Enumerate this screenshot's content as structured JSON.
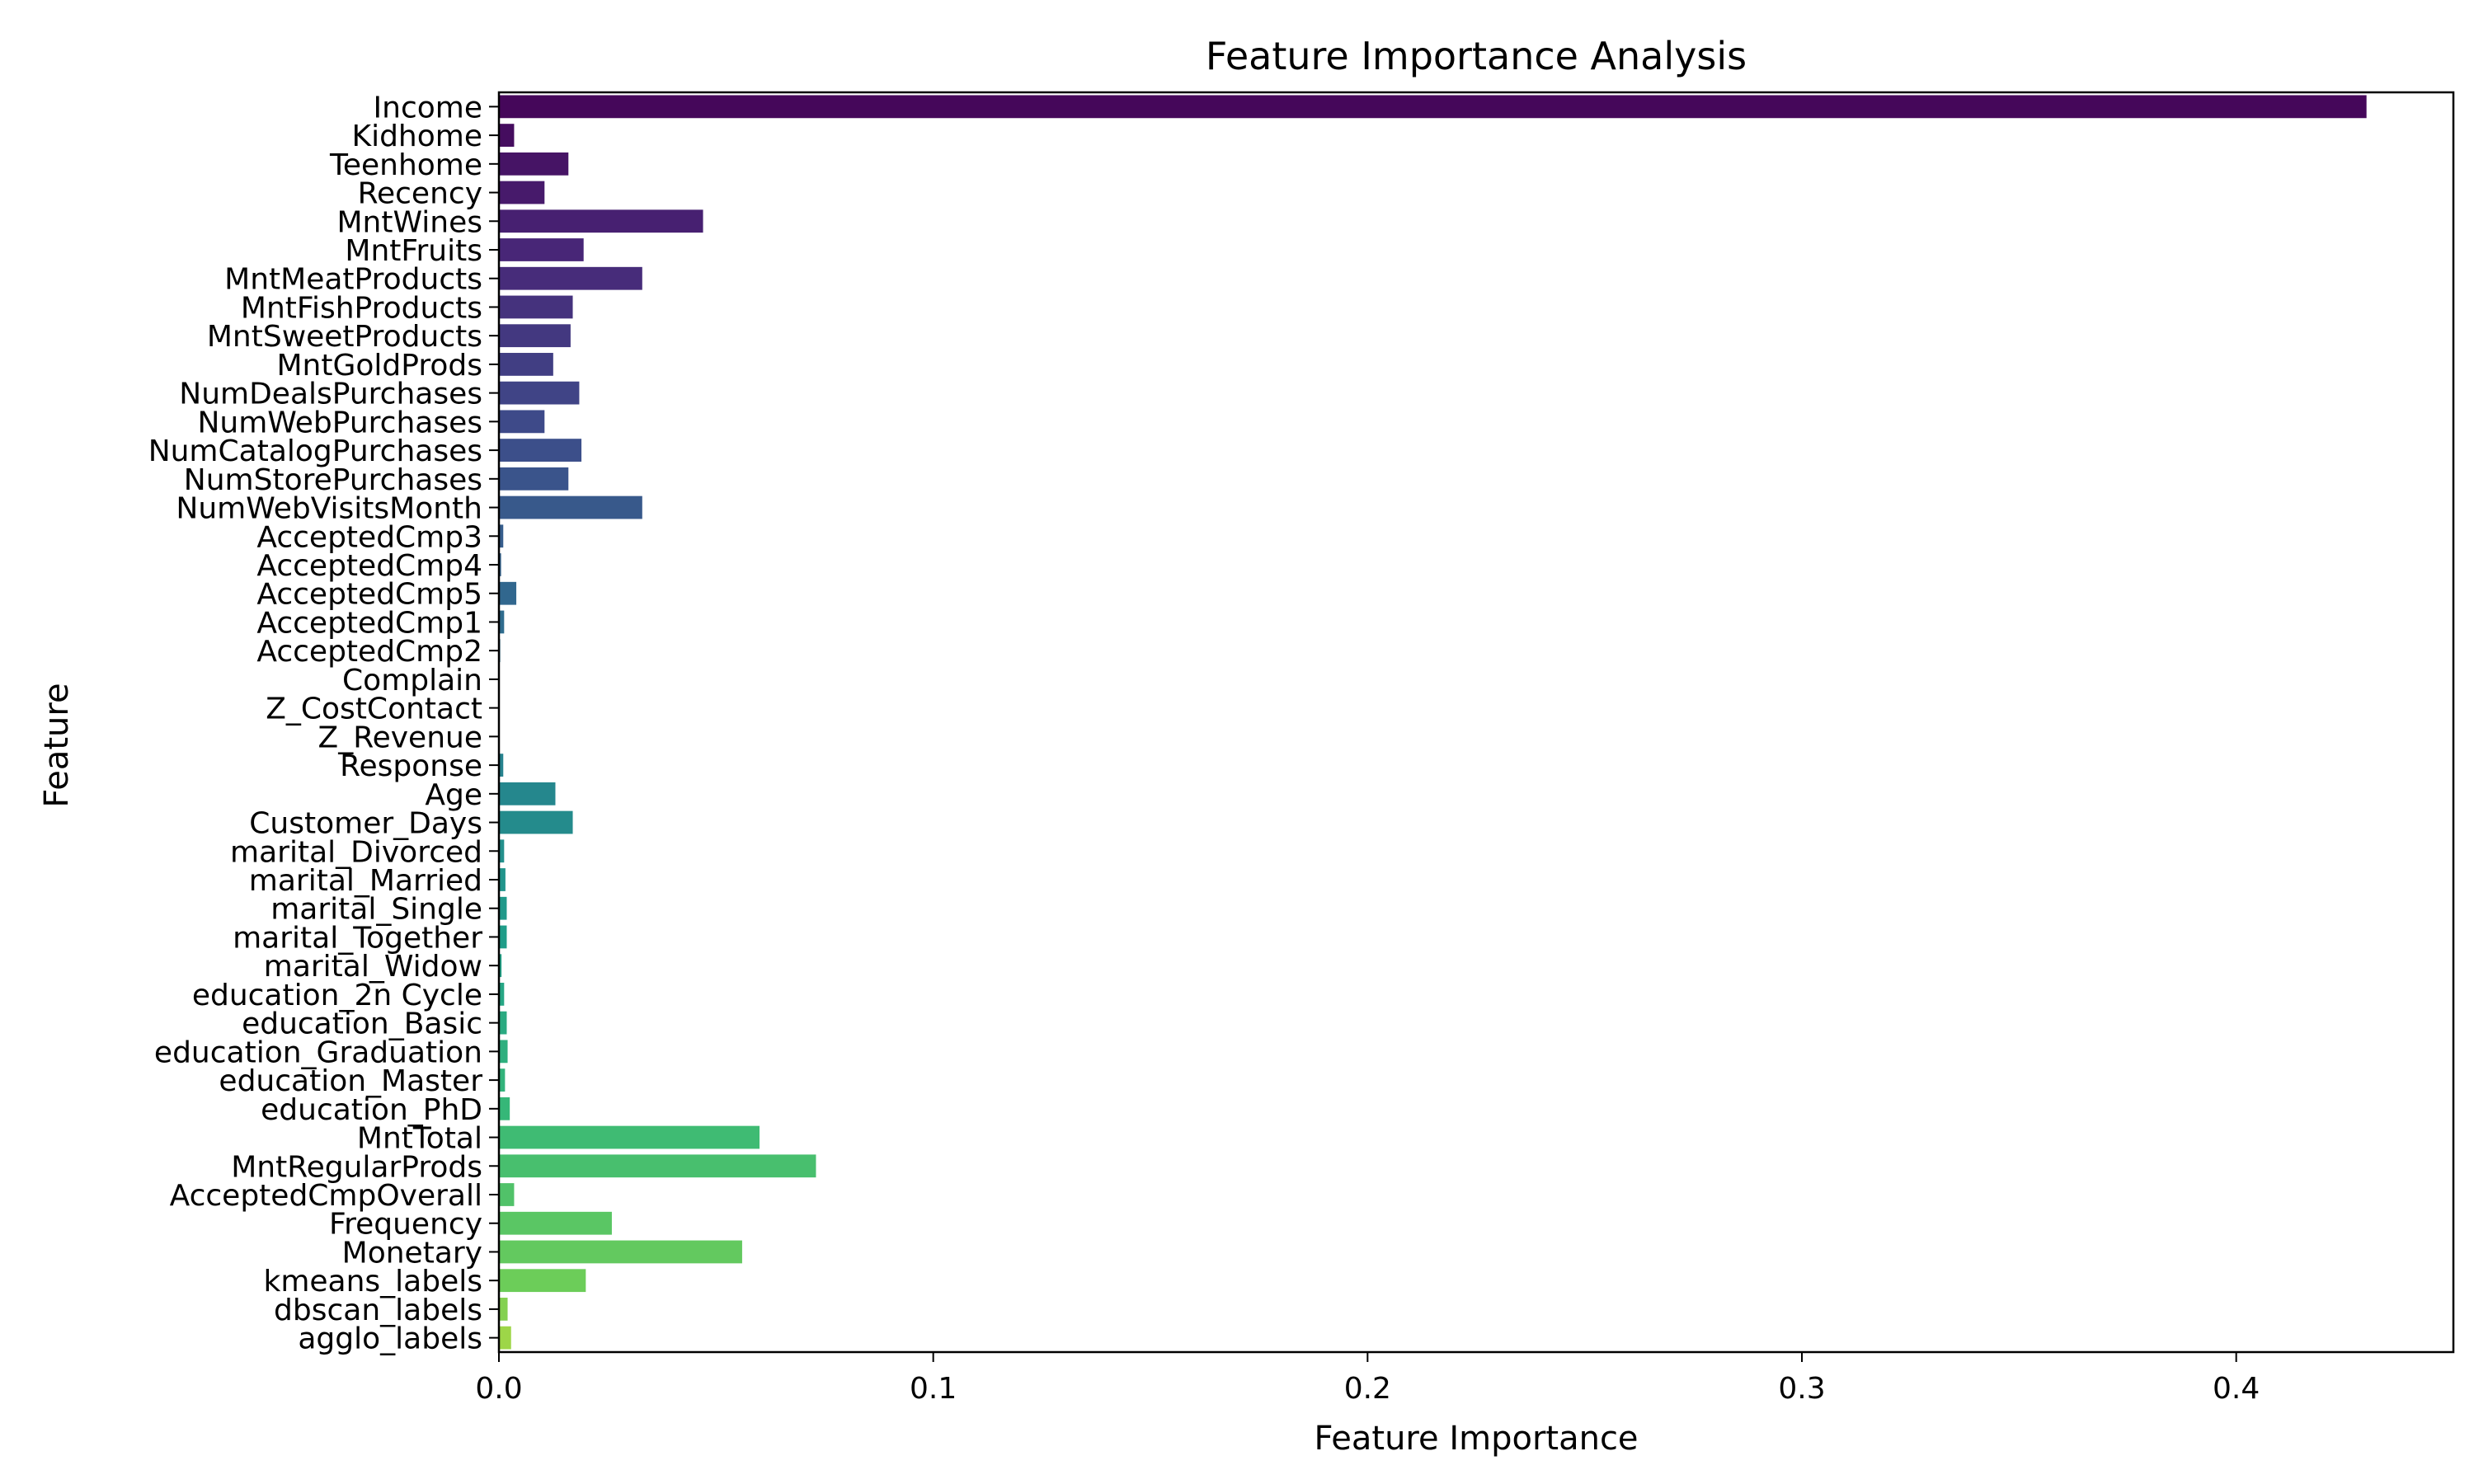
{
  "chart_data": {
    "type": "bar",
    "orientation": "horizontal",
    "title": "Feature Importance Analysis",
    "xlabel": "Feature Importance",
    "ylabel": "Feature",
    "xlim": [
      0,
      0.45
    ],
    "xticks": [
      0.0,
      0.1,
      0.2,
      0.3,
      0.4
    ],
    "xtick_labels": [
      "0.0",
      "0.1",
      "0.2",
      "0.3",
      "0.4"
    ],
    "grid": false,
    "colormap": "viridis",
    "categories": [
      "Income",
      "Kidhome",
      "Teenhome",
      "Recency",
      "MntWines",
      "MntFruits",
      "MntMeatProducts",
      "MntFishProducts",
      "MntSweetProducts",
      "MntGoldProds",
      "NumDealsPurchases",
      "NumWebPurchases",
      "NumCatalogPurchases",
      "NumStorePurchases",
      "NumWebVisitsMonth",
      "AcceptedCmp3",
      "AcceptedCmp4",
      "AcceptedCmp5",
      "AcceptedCmp1",
      "AcceptedCmp2",
      "Complain",
      "Z_CostContact",
      "Z_Revenue",
      "Response",
      "Age",
      "Customer_Days",
      "marital_Divorced",
      "marital_Married",
      "marital_Single",
      "marital_Together",
      "marital_Widow",
      "education_2n Cycle",
      "education_Basic",
      "education_Graduation",
      "education_Master",
      "education_PhD",
      "MntTotal",
      "MntRegularProds",
      "AcceptedCmpOverall",
      "Frequency",
      "Monetary",
      "kmeans_labels",
      "dbscan_labels",
      "agglo_labels"
    ],
    "values": [
      0.43,
      0.0035,
      0.016,
      0.0105,
      0.047,
      0.0195,
      0.033,
      0.017,
      0.0165,
      0.0125,
      0.0185,
      0.0105,
      0.019,
      0.016,
      0.033,
      0.001,
      0.0005,
      0.004,
      0.0012,
      0.0003,
      0.0001,
      0.0,
      0.0,
      0.001,
      0.013,
      0.017,
      0.0012,
      0.0015,
      0.0018,
      0.0018,
      0.0006,
      0.0012,
      0.0018,
      0.002,
      0.0014,
      0.0025,
      0.06,
      0.073,
      0.0035,
      0.026,
      0.056,
      0.02,
      0.002,
      0.0028
    ]
  }
}
